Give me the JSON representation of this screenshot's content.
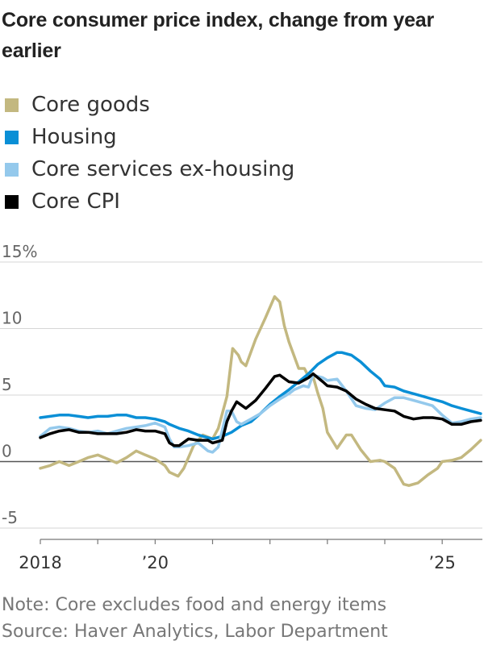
{
  "title": "Core consumer price index, change from year earlier",
  "note": "Note: Core excludes food and energy items",
  "source": "Source: Haver Analytics, Labor Department",
  "chart_data": {
    "type": "line",
    "ylim": [
      -5,
      15
    ],
    "xlim": [
      2018.0,
      2025.7
    ],
    "y_ticks": [
      {
        "value": 15,
        "label": "15%"
      },
      {
        "value": 10,
        "label": "10"
      },
      {
        "value": 5,
        "label": "5"
      },
      {
        "value": 0,
        "label": "0"
      },
      {
        "value": -5,
        "label": "-5"
      }
    ],
    "x_ticks": [
      2018,
      2019,
      2020,
      2021,
      2022,
      2023,
      2024,
      2025
    ],
    "x_labels": [
      {
        "value": 2018,
        "label": "2018"
      },
      {
        "value": 2020,
        "label": "’20"
      },
      {
        "value": 2025,
        "label": "’25"
      }
    ],
    "grid": true,
    "legend_position": "top-left",
    "series": [
      {
        "name": "Core goods",
        "color": "#c3b880",
        "points": [
          [
            2018.0,
            -0.5
          ],
          [
            2018.17,
            -0.3
          ],
          [
            2018.33,
            0.0
          ],
          [
            2018.5,
            -0.3
          ],
          [
            2018.67,
            0.0
          ],
          [
            2018.83,
            0.3
          ],
          [
            2019.0,
            0.5
          ],
          [
            2019.17,
            0.2
          ],
          [
            2019.33,
            -0.1
          ],
          [
            2019.5,
            0.3
          ],
          [
            2019.67,
            0.8
          ],
          [
            2019.83,
            0.5
          ],
          [
            2020.0,
            0.2
          ],
          [
            2020.17,
            -0.3
          ],
          [
            2020.25,
            -0.8
          ],
          [
            2020.4,
            -1.1
          ],
          [
            2020.5,
            -0.5
          ],
          [
            2020.67,
            1.2
          ],
          [
            2020.83,
            2.0
          ],
          [
            2021.0,
            1.7
          ],
          [
            2021.1,
            2.5
          ],
          [
            2021.25,
            4.9
          ],
          [
            2021.35,
            8.5
          ],
          [
            2021.45,
            8.0
          ],
          [
            2021.5,
            7.5
          ],
          [
            2021.58,
            7.2
          ],
          [
            2021.75,
            9.2
          ],
          [
            2021.92,
            10.8
          ],
          [
            2022.08,
            12.4
          ],
          [
            2022.17,
            12.0
          ],
          [
            2022.25,
            10.2
          ],
          [
            2022.33,
            9.0
          ],
          [
            2022.5,
            7.0
          ],
          [
            2022.6,
            7.0
          ],
          [
            2022.67,
            6.4
          ],
          [
            2022.75,
            6.4
          ],
          [
            2022.83,
            5.2
          ],
          [
            2022.92,
            4.0
          ],
          [
            2023.0,
            2.2
          ],
          [
            2023.17,
            1.0
          ],
          [
            2023.33,
            2.0
          ],
          [
            2023.42,
            2.0
          ],
          [
            2023.58,
            0.9
          ],
          [
            2023.75,
            0.0
          ],
          [
            2023.92,
            0.1
          ],
          [
            2024.0,
            0.0
          ],
          [
            2024.17,
            -0.5
          ],
          [
            2024.33,
            -1.7
          ],
          [
            2024.42,
            -1.8
          ],
          [
            2024.58,
            -1.6
          ],
          [
            2024.75,
            -1.0
          ],
          [
            2024.92,
            -0.5
          ],
          [
            2025.0,
            0.0
          ],
          [
            2025.17,
            0.1
          ],
          [
            2025.33,
            0.3
          ],
          [
            2025.5,
            0.9
          ],
          [
            2025.67,
            1.6
          ]
        ]
      },
      {
        "name": "Housing",
        "color": "#0a8fd6",
        "points": [
          [
            2018.0,
            3.3
          ],
          [
            2018.17,
            3.4
          ],
          [
            2018.33,
            3.5
          ],
          [
            2018.5,
            3.5
          ],
          [
            2018.67,
            3.4
          ],
          [
            2018.83,
            3.3
          ],
          [
            2019.0,
            3.4
          ],
          [
            2019.17,
            3.4
          ],
          [
            2019.33,
            3.5
          ],
          [
            2019.5,
            3.5
          ],
          [
            2019.67,
            3.3
          ],
          [
            2019.83,
            3.3
          ],
          [
            2020.0,
            3.2
          ],
          [
            2020.17,
            3.0
          ],
          [
            2020.25,
            2.8
          ],
          [
            2020.42,
            2.5
          ],
          [
            2020.58,
            2.3
          ],
          [
            2020.75,
            2.0
          ],
          [
            2020.92,
            1.8
          ],
          [
            2021.0,
            1.7
          ],
          [
            2021.17,
            1.9
          ],
          [
            2021.33,
            2.2
          ],
          [
            2021.5,
            2.7
          ],
          [
            2021.67,
            3.0
          ],
          [
            2021.83,
            3.6
          ],
          [
            2022.0,
            4.3
          ],
          [
            2022.17,
            4.9
          ],
          [
            2022.33,
            5.4
          ],
          [
            2022.5,
            6.0
          ],
          [
            2022.67,
            6.6
          ],
          [
            2022.83,
            7.3
          ],
          [
            2023.0,
            7.8
          ],
          [
            2023.17,
            8.2
          ],
          [
            2023.25,
            8.2
          ],
          [
            2023.42,
            8.0
          ],
          [
            2023.58,
            7.5
          ],
          [
            2023.75,
            6.8
          ],
          [
            2023.92,
            6.2
          ],
          [
            2024.0,
            5.7
          ],
          [
            2024.17,
            5.6
          ],
          [
            2024.33,
            5.3
          ],
          [
            2024.5,
            5.1
          ],
          [
            2024.67,
            4.9
          ],
          [
            2024.83,
            4.7
          ],
          [
            2025.0,
            4.5
          ],
          [
            2025.17,
            4.2
          ],
          [
            2025.33,
            4.0
          ],
          [
            2025.5,
            3.8
          ],
          [
            2025.67,
            3.6
          ]
        ]
      },
      {
        "name": "Core services ex-housing",
        "color": "#94c9ec",
        "points": [
          [
            2018.0,
            1.9
          ],
          [
            2018.17,
            2.5
          ],
          [
            2018.33,
            2.6
          ],
          [
            2018.5,
            2.5
          ],
          [
            2018.67,
            2.3
          ],
          [
            2018.83,
            2.2
          ],
          [
            2019.0,
            2.3
          ],
          [
            2019.17,
            2.1
          ],
          [
            2019.33,
            2.3
          ],
          [
            2019.5,
            2.5
          ],
          [
            2019.67,
            2.6
          ],
          [
            2019.83,
            2.7
          ],
          [
            2020.0,
            2.9
          ],
          [
            2020.17,
            2.6
          ],
          [
            2020.25,
            1.7
          ],
          [
            2020.33,
            1.1
          ],
          [
            2020.42,
            1.1
          ],
          [
            2020.58,
            1.2
          ],
          [
            2020.75,
            1.4
          ],
          [
            2020.92,
            0.8
          ],
          [
            2021.0,
            0.7
          ],
          [
            2021.1,
            1.1
          ],
          [
            2021.25,
            3.8
          ],
          [
            2021.33,
            3.8
          ],
          [
            2021.42,
            3.0
          ],
          [
            2021.5,
            2.8
          ],
          [
            2021.67,
            3.2
          ],
          [
            2021.83,
            3.6
          ],
          [
            2022.0,
            4.2
          ],
          [
            2022.17,
            4.7
          ],
          [
            2022.33,
            5.1
          ],
          [
            2022.42,
            5.4
          ],
          [
            2022.58,
            5.7
          ],
          [
            2022.67,
            5.6
          ],
          [
            2022.75,
            6.5
          ],
          [
            2022.92,
            6.3
          ],
          [
            2023.0,
            6.1
          ],
          [
            2023.17,
            6.2
          ],
          [
            2023.33,
            5.3
          ],
          [
            2023.5,
            4.2
          ],
          [
            2023.67,
            4.0
          ],
          [
            2023.83,
            3.9
          ],
          [
            2024.0,
            4.4
          ],
          [
            2024.17,
            4.8
          ],
          [
            2024.33,
            4.8
          ],
          [
            2024.5,
            4.6
          ],
          [
            2024.67,
            4.4
          ],
          [
            2024.83,
            4.2
          ],
          [
            2025.0,
            3.5
          ],
          [
            2025.17,
            2.9
          ],
          [
            2025.33,
            3.0
          ],
          [
            2025.5,
            3.2
          ],
          [
            2025.67,
            3.3
          ]
        ]
      },
      {
        "name": "Core CPI",
        "color": "#000000",
        "points": [
          [
            2018.0,
            1.8
          ],
          [
            2018.17,
            2.1
          ],
          [
            2018.33,
            2.3
          ],
          [
            2018.5,
            2.4
          ],
          [
            2018.67,
            2.2
          ],
          [
            2018.83,
            2.2
          ],
          [
            2019.0,
            2.1
          ],
          [
            2019.17,
            2.1
          ],
          [
            2019.33,
            2.1
          ],
          [
            2019.5,
            2.2
          ],
          [
            2019.67,
            2.4
          ],
          [
            2019.83,
            2.3
          ],
          [
            2020.0,
            2.3
          ],
          [
            2020.17,
            2.1
          ],
          [
            2020.25,
            1.4
          ],
          [
            2020.33,
            1.2
          ],
          [
            2020.42,
            1.2
          ],
          [
            2020.58,
            1.7
          ],
          [
            2020.75,
            1.6
          ],
          [
            2020.92,
            1.6
          ],
          [
            2021.0,
            1.4
          ],
          [
            2021.17,
            1.6
          ],
          [
            2021.25,
            3.0
          ],
          [
            2021.33,
            3.8
          ],
          [
            2021.42,
            4.5
          ],
          [
            2021.58,
            4.0
          ],
          [
            2021.75,
            4.6
          ],
          [
            2021.92,
            5.5
          ],
          [
            2022.08,
            6.4
          ],
          [
            2022.17,
            6.5
          ],
          [
            2022.33,
            6.0
          ],
          [
            2022.5,
            5.9
          ],
          [
            2022.67,
            6.3
          ],
          [
            2022.75,
            6.6
          ],
          [
            2022.92,
            6.0
          ],
          [
            2023.0,
            5.7
          ],
          [
            2023.17,
            5.6
          ],
          [
            2023.33,
            5.3
          ],
          [
            2023.5,
            4.7
          ],
          [
            2023.67,
            4.3
          ],
          [
            2023.83,
            4.0
          ],
          [
            2024.0,
            3.9
          ],
          [
            2024.17,
            3.8
          ],
          [
            2024.33,
            3.4
          ],
          [
            2024.5,
            3.2
          ],
          [
            2024.67,
            3.3
          ],
          [
            2024.83,
            3.3
          ],
          [
            2025.0,
            3.2
          ],
          [
            2025.17,
            2.8
          ],
          [
            2025.33,
            2.8
          ],
          [
            2025.5,
            3.0
          ],
          [
            2025.67,
            3.1
          ]
        ]
      }
    ]
  }
}
